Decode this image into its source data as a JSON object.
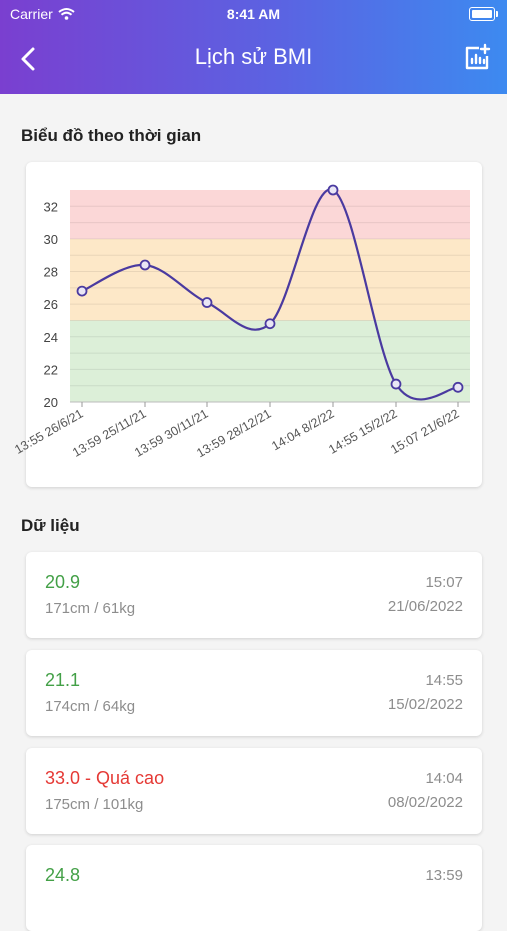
{
  "status_bar": {
    "carrier": "Carrier",
    "time": "8:41 AM"
  },
  "header": {
    "title": "Lịch sử BMI"
  },
  "chart_section": {
    "title": "Biểu đồ theo thời gian"
  },
  "data_section": {
    "title": "Dữ liệu"
  },
  "colors": {
    "line": "#4a3aa0",
    "zone_high": "#fbd7d7",
    "zone_over": "#fde8c8",
    "zone_normal": "#dcefd8",
    "green": "#43a047",
    "red": "#e53935"
  },
  "chart_data": {
    "type": "line",
    "categories": [
      "13:55 26/6/21",
      "13:59 25/11/21",
      "13:59 30/11/21",
      "13:59 28/12/21",
      "14:04 8/2/22",
      "14:55 15/2/22",
      "15:07 21/6/22"
    ],
    "values": [
      26.8,
      28.4,
      26.1,
      24.8,
      33.0,
      21.1,
      20.9
    ],
    "yticks": [
      20,
      22,
      24,
      26,
      28,
      30,
      32
    ],
    "ylim": [
      20,
      33
    ],
    "zones": [
      {
        "from": 20,
        "to": 25,
        "color": "#dcefd8"
      },
      {
        "from": 25,
        "to": 30,
        "color": "#fde8c8"
      },
      {
        "from": 30,
        "to": 33,
        "color": "#fbd7d7"
      }
    ],
    "grid": true
  },
  "records": [
    {
      "bmi": "20.9",
      "measure": "171cm / 61kg",
      "time": "15:07",
      "date": "21/06/2022",
      "status": "normal"
    },
    {
      "bmi": "21.1",
      "measure": "174cm / 64kg",
      "time": "14:55",
      "date": "15/02/2022",
      "status": "normal"
    },
    {
      "bmi": "33.0 - Quá cao",
      "measure": "175cm / 101kg",
      "time": "14:04",
      "date": "08/02/2022",
      "status": "high"
    },
    {
      "bmi": "24.8",
      "measure": "",
      "time": "13:59",
      "date": "",
      "status": "normal"
    }
  ]
}
